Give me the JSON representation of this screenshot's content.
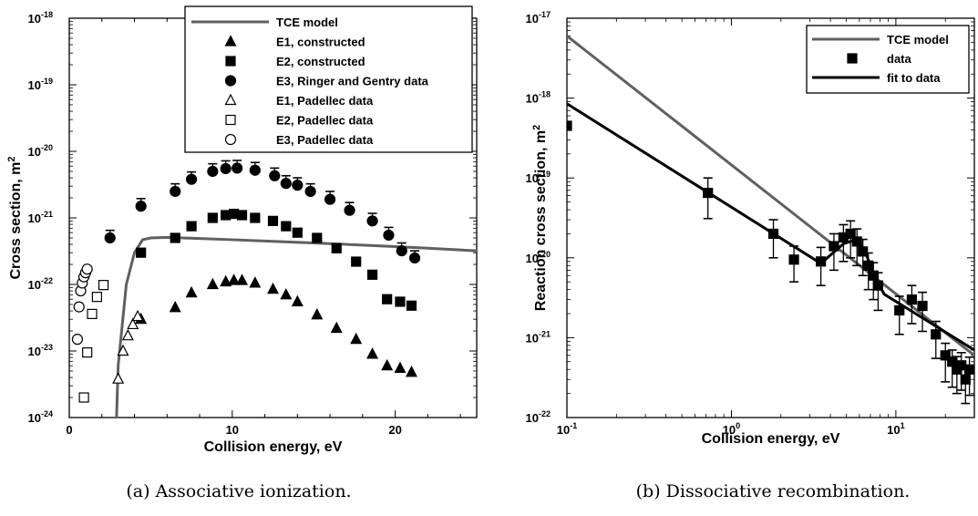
{
  "captions": {
    "a": "(a) Associative ionization.",
    "b": "(b) Dissociative recombination."
  },
  "colors": {
    "model_gray": "#606060",
    "black": "#000000"
  },
  "chart_data": [
    {
      "type": "scatter",
      "xlabel": "Collision energy, eV",
      "ylabel": "Cross section, m²",
      "xlim": [
        0,
        25
      ],
      "ylim": [
        1e-24,
        1e-18
      ],
      "yscale": "log",
      "x_ticks": [
        0,
        10,
        20
      ],
      "x_tick_labels": [
        "0",
        "10",
        "20"
      ],
      "y_tick_exps": [
        -24,
        -23,
        -22,
        -21,
        -20,
        -19,
        -18
      ],
      "y_tick_labels": [
        "10",
        "10",
        "10",
        "10",
        "10",
        "10",
        "10"
      ],
      "y_tick_sups": [
        "-24",
        "-23",
        "-22",
        "-21",
        "-20",
        "-19",
        "-18"
      ],
      "legend_position": "top-right",
      "series": [
        {
          "name": "TCE model",
          "kind": "line",
          "x": [
            2.9,
            3.0,
            3.5,
            4.0,
            4.5,
            5.0,
            6.0,
            8.0,
            10.0,
            12.0,
            15.0,
            18.0,
            20.0,
            22.0,
            25.0
          ],
          "y": [
            1e-24,
            6e-24,
            1e-22,
            3e-22,
            4.7e-22,
            5e-22,
            5.1e-22,
            4.9e-22,
            4.7e-22,
            4.5e-22,
            4.2e-22,
            3.9e-22,
            3.7e-22,
            3.5e-22,
            3.2e-22
          ]
        },
        {
          "name": "E1, constructed",
          "kind": "filled-triangle",
          "x": [
            4.4,
            6.5,
            7.5,
            8.8,
            9.6,
            10.1,
            10.6,
            11.4,
            12.5,
            13.3,
            14.0,
            15.2,
            16.4,
            17.6,
            18.6,
            19.5,
            20.3,
            21.0
          ],
          "y": [
            3e-23,
            4.5e-23,
            7.5e-23,
            1e-22,
            1.1e-22,
            1.15e-22,
            1.15e-22,
            1.05e-22,
            8.5e-23,
            7e-23,
            5.5e-23,
            3.5e-23,
            2.2e-23,
            1.5e-23,
            9e-24,
            6e-24,
            5.5e-24,
            4.8e-24
          ]
        },
        {
          "name": "E2, constructed",
          "kind": "filled-square",
          "x": [
            4.4,
            6.5,
            7.5,
            8.8,
            9.6,
            10.1,
            10.6,
            11.4,
            12.5,
            13.3,
            14.0,
            15.2,
            16.4,
            17.6,
            18.6,
            19.5,
            20.3,
            21.0
          ],
          "y": [
            3e-22,
            5e-22,
            7.5e-22,
            1e-21,
            1.1e-21,
            1.15e-21,
            1.1e-21,
            1e-21,
            9e-22,
            7.5e-22,
            6e-22,
            5e-22,
            3.5e-22,
            2.2e-22,
            1.4e-22,
            6e-23,
            5.5e-23,
            4.8e-23
          ]
        },
        {
          "name": "E3, Ringer and Gentry data",
          "kind": "filled-circle",
          "error_bars": true,
          "x": [
            2.5,
            4.4,
            6.5,
            7.5,
            8.8,
            9.6,
            10.3,
            11.4,
            12.6,
            13.3,
            14.0,
            14.8,
            16.0,
            17.2,
            18.6,
            19.6,
            20.4,
            21.2
          ],
          "y": [
            5e-22,
            1.5e-21,
            2.5e-21,
            3.8e-21,
            5e-21,
            5.5e-21,
            5.6e-21,
            5.2e-21,
            4.3e-21,
            3.3e-21,
            3.1e-21,
            2.5e-21,
            1.9e-21,
            1.3e-21,
            9e-22,
            5.5e-22,
            3.2e-22,
            2.5e-22
          ],
          "y_upper": [
            6.5e-22,
            1.95e-21,
            3.25e-21,
            4.9e-21,
            6.5e-21,
            7.2e-21,
            7.3e-21,
            6.8e-21,
            5.6e-21,
            4.3e-21,
            4e-21,
            3.25e-21,
            2.5e-21,
            1.7e-21,
            1.17e-21,
            7.2e-22,
            4.2e-22,
            3.2e-22
          ]
        },
        {
          "name": "E1, Padellec data",
          "kind": "open-triangle",
          "x": [
            3.0,
            3.3,
            3.6,
            3.9,
            4.2
          ],
          "y": [
            3.8e-24,
            1e-23,
            1.7e-23,
            2.5e-23,
            3.3e-23
          ]
        },
        {
          "name": "E2, Padellec data",
          "kind": "open-square",
          "x": [
            0.9,
            1.1,
            1.4,
            1.7,
            2.1
          ],
          "y": [
            2e-24,
            9.5e-24,
            3.6e-23,
            6.5e-23,
            9.8e-23
          ]
        },
        {
          "name": "E3, Padellec data",
          "kind": "open-circle",
          "x": [
            0.5,
            0.6,
            0.7,
            0.8,
            0.9,
            1.0,
            1.1
          ],
          "y": [
            1.5e-23,
            4.6e-23,
            8e-23,
            1.05e-22,
            1.3e-22,
            1.5e-22,
            1.7e-22
          ]
        }
      ]
    },
    {
      "type": "scatter",
      "xlabel": "Collision energy, eV",
      "ylabel": "Reaction cross section, m²",
      "xlim": [
        0.1,
        30
      ],
      "ylim": [
        1e-22,
        1e-17
      ],
      "xscale": "log",
      "yscale": "log",
      "x_tick_exps": [
        -1,
        0,
        1
      ],
      "x_tick_labels": [
        "10",
        "10",
        "10"
      ],
      "x_tick_sups": [
        "-1",
        "0",
        "1"
      ],
      "y_tick_exps": [
        -22,
        -21,
        -20,
        -19,
        -18,
        -17
      ],
      "y_tick_labels": [
        "10",
        "10",
        "10",
        "10",
        "10",
        "10"
      ],
      "y_tick_sups": [
        "-22",
        "-21",
        "-20",
        "-19",
        "-18",
        "-17"
      ],
      "legend_position": "top-right",
      "series": [
        {
          "name": "TCE model",
          "kind": "line",
          "x": [
            0.1,
            30
          ],
          "y": [
            6e-18,
            6e-22
          ]
        },
        {
          "name": "data",
          "kind": "filled-square",
          "error_bars": true,
          "x": [
            0.1,
            0.72,
            1.8,
            2.4,
            3.5,
            4.2,
            4.8,
            5.3,
            5.8,
            6.3,
            6.8,
            7.3,
            7.8,
            10.5,
            12.5,
            14.5,
            17.5,
            20.0,
            22.0,
            23.5,
            25.0,
            26.5,
            28.0
          ],
          "y": [
            4.5e-19,
            6.5e-20,
            2e-20,
            9.5e-21,
            9e-21,
            1.4e-20,
            1.8e-20,
            2e-20,
            1.6e-20,
            1.2e-20,
            8e-21,
            6e-21,
            4.5e-21,
            2.2e-21,
            3e-21,
            2.5e-21,
            1.1e-21,
            6e-22,
            5e-22,
            4e-22,
            4.5e-22,
            3e-22,
            4e-22
          ],
          "y_upper": [
            null,
            1e-19,
            3e-20,
            1.4e-20,
            1.35e-20,
            2e-20,
            2.6e-20,
            2.9e-20,
            2.3e-20,
            1.7e-20,
            1.15e-20,
            8.7e-21,
            6.5e-21,
            3.3e-21,
            4.5e-21,
            3.7e-21,
            1.6e-21,
            8.5e-22,
            7e-22,
            5.8e-22,
            6.5e-22,
            4.5e-22,
            5.7e-22
          ],
          "y_lower": [
            null,
            3.1e-20,
            1e-20,
            5e-21,
            4.5e-21,
            7e-21,
            9e-21,
            1e-20,
            8e-21,
            6e-21,
            4e-21,
            3e-21,
            2.2e-21,
            1.1e-21,
            1.5e-21,
            1.2e-21,
            5.5e-22,
            2.8e-22,
            2.4e-22,
            2e-22,
            2.2e-22,
            1.5e-22,
            1.9e-22
          ]
        },
        {
          "name": "fit to data",
          "kind": "line",
          "x": [
            0.1,
            3.5,
            4.8,
            5.8,
            6.5,
            7.5,
            8.5,
            30
          ],
          "y": [
            8.5e-19,
            8.5e-21,
            1.5e-20,
            1.7e-20,
            1.2e-20,
            5.5e-21,
            3.5e-21,
            7e-22
          ]
        }
      ]
    }
  ]
}
